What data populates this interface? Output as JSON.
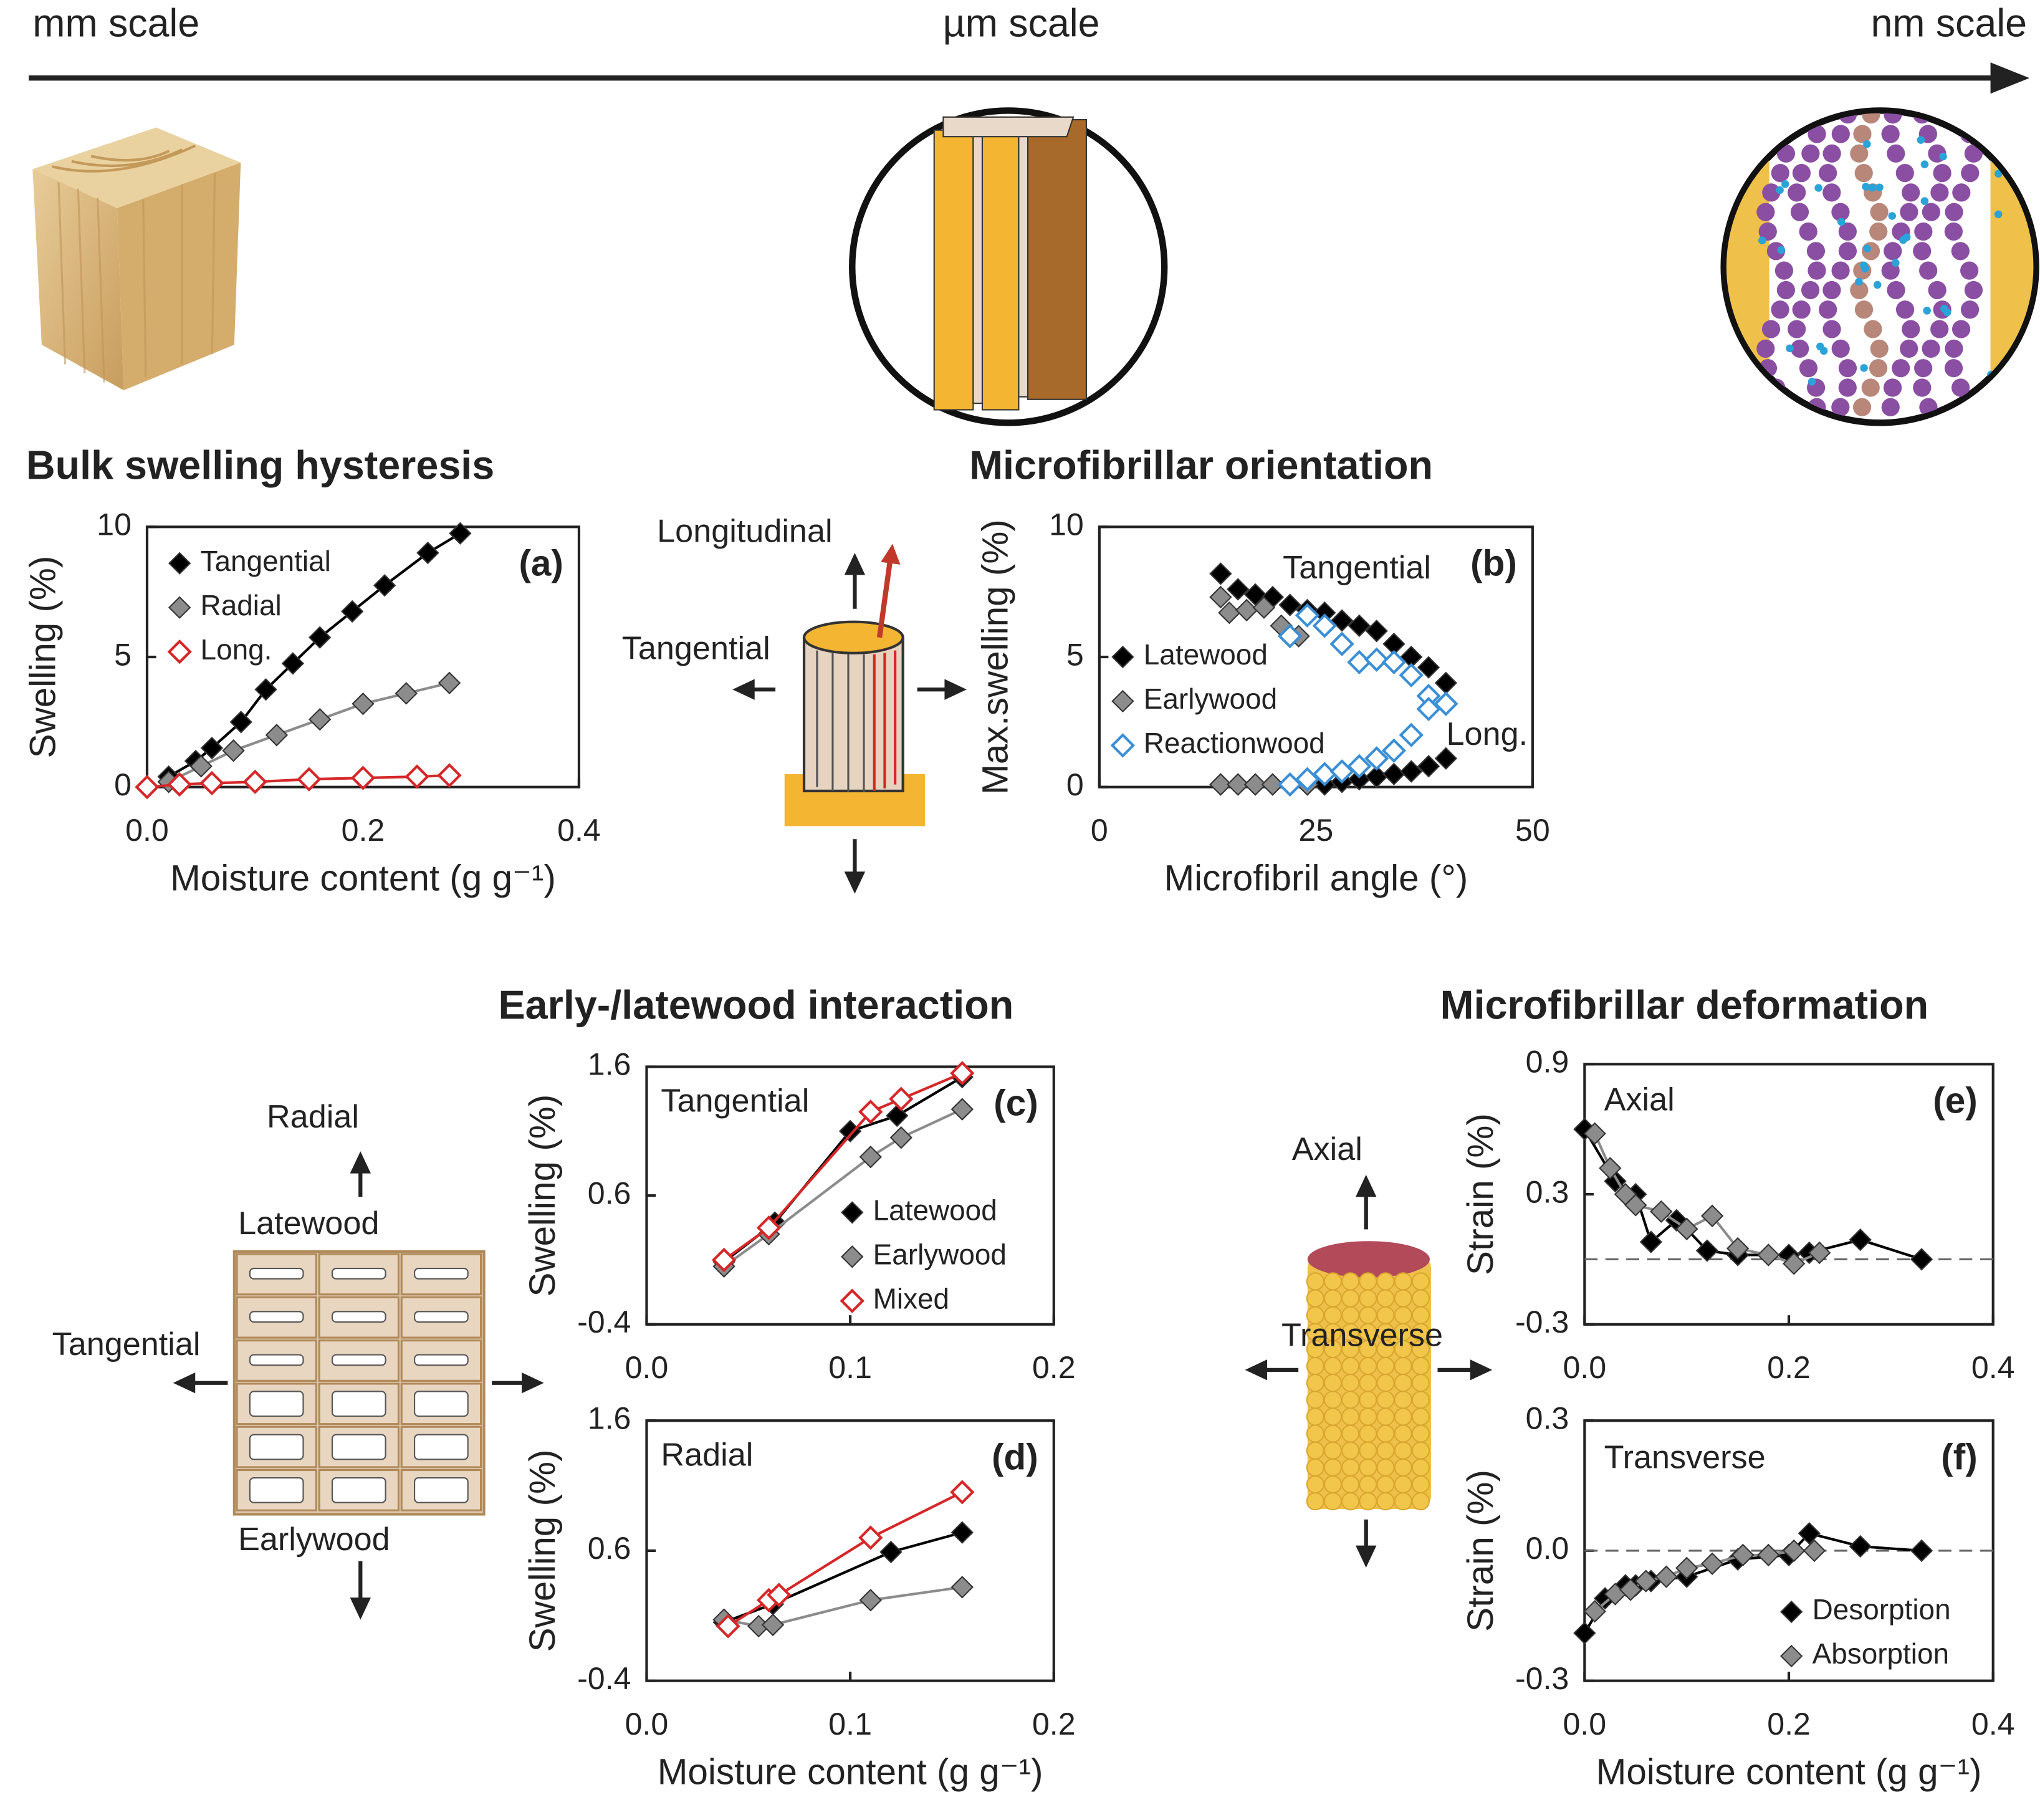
{
  "header": {
    "scales": [
      "mm scale",
      "µm scale",
      "nm scale"
    ]
  },
  "sections": [
    "Bulk swelling hysteresis",
    "Microfibrillar orientation",
    "Early-/latewood interaction",
    "Microfibrillar deformation"
  ],
  "diagrams": {
    "fiber": [
      "Longitudinal",
      "Tangential"
    ],
    "cells": [
      "Radial",
      "Latewood",
      "Tangential",
      "Earlywood"
    ],
    "fibril": [
      "Axial",
      "Transverse"
    ]
  },
  "chart_data": [
    {
      "type": "line",
      "panel_label": "(a)",
      "xlabel": "Moisture content (g g⁻¹)",
      "ylabel": "Swelling (%)",
      "xlim": [
        0,
        0.4
      ],
      "xticks": [
        {
          "value": 0,
          "label": "0.0"
        },
        0.2,
        0.4
      ],
      "ylim": [
        0,
        10
      ],
      "yticks": [
        0,
        5,
        10
      ],
      "legend": "upper left",
      "series": [
        {
          "name": "Tangential",
          "color": "#000000",
          "filled": true,
          "x": [
            0.02,
            0.045,
            0.06,
            0.087,
            0.11,
            0.135,
            0.16,
            0.19,
            0.22,
            0.26,
            0.29
          ],
          "values": [
            0.4,
            1.0,
            1.5,
            2.5,
            3.75,
            4.75,
            5.75,
            6.75,
            7.75,
            9.0,
            9.75
          ]
        },
        {
          "name": "Radial",
          "color": "#8c8c8c",
          "filled": true,
          "x": [
            0.02,
            0.05,
            0.08,
            0.12,
            0.16,
            0.2,
            0.24,
            0.28
          ],
          "values": [
            0.2,
            0.8,
            1.4,
            2.0,
            2.6,
            3.2,
            3.6,
            4.0
          ]
        },
        {
          "name": "Long.",
          "color": "#d62728",
          "filled": false,
          "x": [
            0.0,
            0.03,
            0.06,
            0.1,
            0.15,
            0.2,
            0.25,
            0.28
          ],
          "values": [
            0.0,
            0.1,
            0.15,
            0.2,
            0.3,
            0.35,
            0.4,
            0.45
          ]
        }
      ]
    },
    {
      "type": "scatter",
      "panel_label": "(b)",
      "xlabel": "Microfibril angle (°)",
      "ylabel": "Max.swelling (%)",
      "annotations": [
        "Tangential",
        "Long."
      ],
      "xlim": [
        0,
        50
      ],
      "xticks": [
        0,
        25,
        50
      ],
      "ylim": [
        0,
        10
      ],
      "yticks": [
        0,
        5,
        10
      ],
      "legend": "center left",
      "series": [
        {
          "name": "Latewood",
          "color": "#000000",
          "filled": true,
          "x": [
            14,
            16,
            18,
            20,
            22,
            24,
            26,
            28,
            30,
            32,
            34,
            36,
            38,
            40,
            14,
            16,
            18,
            20,
            22,
            24,
            26,
            28,
            30,
            32,
            34,
            36,
            38,
            40
          ],
          "values": [
            8.2,
            7.6,
            7.4,
            7.3,
            7.0,
            6.8,
            6.7,
            6.4,
            6.2,
            6.0,
            5.5,
            5.0,
            4.6,
            4.0,
            0.1,
            0.1,
            0.1,
            0.1,
            0.1,
            0.1,
            0.1,
            0.2,
            0.3,
            0.4,
            0.5,
            0.6,
            0.8,
            1.1
          ]
        },
        {
          "name": "Earlywood",
          "color": "#8c8c8c",
          "filled": true,
          "x": [
            14,
            15,
            17,
            19,
            21,
            23,
            14,
            16,
            18,
            20,
            22,
            24
          ],
          "values": [
            7.3,
            6.7,
            6.8,
            6.9,
            6.2,
            5.8,
            0.1,
            0.1,
            0.1,
            0.1,
            0.1,
            0.1
          ]
        },
        {
          "name": "Reactionwood",
          "color": "#3a8fd6",
          "filled": false,
          "x": [
            22,
            24,
            26,
            28,
            30,
            32,
            34,
            36,
            38,
            40,
            22,
            24,
            26,
            28,
            30,
            32,
            34,
            36,
            38,
            40
          ],
          "values": [
            5.8,
            6.6,
            6.2,
            5.5,
            4.8,
            4.9,
            4.8,
            4.3,
            3.5,
            3.2,
            0.1,
            0.3,
            0.5,
            0.6,
            0.8,
            1.1,
            1.4,
            2.0,
            3.0,
            3.2
          ]
        }
      ]
    },
    {
      "type": "line",
      "panel_label": "(c)",
      "ylabel": "Swelling (%)",
      "annotations": [
        "Tangential"
      ],
      "xlim": [
        0,
        0.2
      ],
      "xticks": [
        {
          "value": 0,
          "label": "0.0"
        },
        0.1,
        0.2
      ],
      "ylim": [
        -0.4,
        1.6
      ],
      "yticks": [
        -0.4,
        0.6,
        1.6
      ],
      "legend": "lower right",
      "series": [
        {
          "name": "Latewood",
          "color": "#000000",
          "filled": true,
          "x": [
            0.038,
            0.063,
            0.1,
            0.123,
            0.155
          ],
          "values": [
            0.085,
            0.39,
            1.1,
            1.22,
            1.52
          ]
        },
        {
          "name": "Earlywood",
          "color": "#8c8c8c",
          "filled": true,
          "x": [
            0.038,
            0.06,
            0.11,
            0.125,
            0.155
          ],
          "values": [
            0.05,
            0.3,
            0.9,
            1.05,
            1.27
          ]
        },
        {
          "name": "Mixed",
          "color": "#d62728",
          "filled": false,
          "x": [
            0.038,
            0.06,
            0.11,
            0.125,
            0.155
          ],
          "values": [
            0.1,
            0.35,
            1.25,
            1.35,
            1.55
          ]
        }
      ]
    },
    {
      "type": "line",
      "panel_label": "(d)",
      "xlabel": "Moisture content (g g⁻¹)",
      "ylabel": "Swelling (%)",
      "annotations": [
        "Radial"
      ],
      "xlim": [
        0,
        0.2
      ],
      "xticks": [
        {
          "value": 0,
          "label": "0.0"
        },
        0.1,
        0.2
      ],
      "ylim": [
        -0.4,
        1.6
      ],
      "yticks": [
        -0.4,
        0.6,
        1.6
      ],
      "legend": "none",
      "series": [
        {
          "name": "Latewood",
          "color": "#000000",
          "filled": true,
          "x": [
            0.038,
            0.062,
            0.12,
            0.155
          ],
          "values": [
            0.05,
            0.19,
            0.59,
            0.74
          ]
        },
        {
          "name": "Earlywood",
          "color": "#8c8c8c",
          "filled": true,
          "x": [
            0.038,
            0.055,
            0.062,
            0.11,
            0.155
          ],
          "values": [
            0.07,
            0.02,
            0.03,
            0.22,
            0.32
          ]
        },
        {
          "name": "Mixed",
          "color": "#d62728",
          "filled": false,
          "x": [
            0.04,
            0.06,
            0.065,
            0.11,
            0.155
          ],
          "values": [
            0.02,
            0.22,
            0.26,
            0.7,
            1.05
          ]
        }
      ]
    },
    {
      "type": "line",
      "panel_label": "(e)",
      "ylabel": "Strain (%)",
      "annotations": [
        "Axial"
      ],
      "zero_line": true,
      "xlim": [
        0,
        0.4
      ],
      "xticks": [
        {
          "value": 0,
          "label": "0.0"
        },
        0.2,
        0.4
      ],
      "ylim": [
        -0.3,
        0.9
      ],
      "yticks": [
        -0.3,
        0.3,
        0.9
      ],
      "legend": "none",
      "series": [
        {
          "name": "Desorption",
          "color": "#000000",
          "filled": true,
          "x": [
            0,
            0.03,
            0.05,
            0.065,
            0.09,
            0.1,
            0.12,
            0.15,
            0.2,
            0.22,
            0.27,
            0.33
          ],
          "values": [
            0.6,
            0.36,
            0.3,
            0.08,
            0.18,
            0.14,
            0.04,
            0.02,
            0.02,
            0.03,
            0.09,
            0.0
          ]
        },
        {
          "name": "Absorption",
          "color": "#8c8c8c",
          "filled": true,
          "x": [
            0.01,
            0.025,
            0.04,
            0.05,
            0.075,
            0.1,
            0.125,
            0.15,
            0.18,
            0.205,
            0.23
          ],
          "values": [
            0.58,
            0.42,
            0.3,
            0.25,
            0.22,
            0.14,
            0.2,
            0.05,
            0.02,
            -0.02,
            0.03
          ]
        }
      ]
    },
    {
      "type": "line",
      "panel_label": "(f)",
      "xlabel": "Moisture content (g g⁻¹)",
      "ylabel": "Strain (%)",
      "annotations": [
        "Transverse"
      ],
      "zero_line": true,
      "xlim": [
        0,
        0.4
      ],
      "xticks": [
        {
          "value": 0,
          "label": "0.0"
        },
        0.2,
        0.4
      ],
      "ylim": [
        -0.3,
        0.3
      ],
      "yticks": [
        -0.3,
        {
          "value": 0,
          "label": "0.0"
        },
        0.3
      ],
      "legend": "lower right",
      "series": [
        {
          "name": "Desorption",
          "color": "#000000",
          "filled": true,
          "x": [
            0,
            0.02,
            0.04,
            0.05,
            0.065,
            0.1,
            0.15,
            0.2,
            0.22,
            0.27,
            0.33
          ],
          "values": [
            -0.19,
            -0.11,
            -0.08,
            -0.08,
            -0.07,
            -0.06,
            -0.02,
            -0.01,
            0.04,
            0.01,
            0.0
          ]
        },
        {
          "name": "Absorption",
          "color": "#8c8c8c",
          "filled": true,
          "x": [
            0.01,
            0.03,
            0.045,
            0.06,
            0.08,
            0.1,
            0.125,
            0.155,
            0.18,
            0.205,
            0.225
          ],
          "values": [
            -0.14,
            -0.1,
            -0.09,
            -0.07,
            -0.06,
            -0.04,
            -0.03,
            -0.01,
            -0.01,
            0.0,
            0.0
          ]
        }
      ]
    }
  ]
}
